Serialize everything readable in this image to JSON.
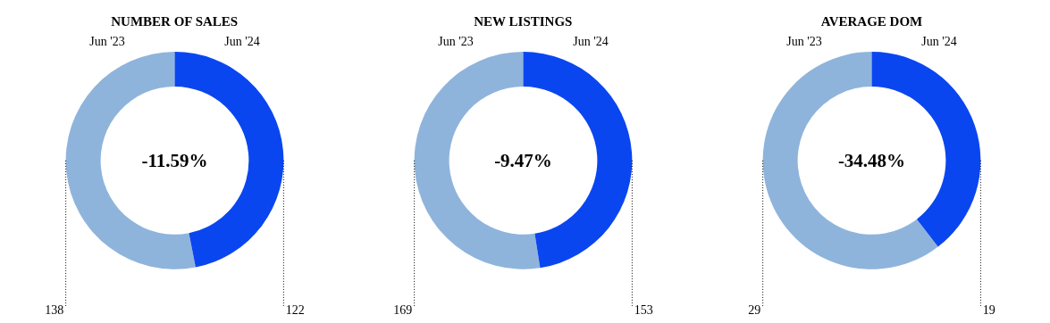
{
  "chart_data": [
    {
      "type": "donut",
      "title": "NUMBER OF SALES",
      "categories": [
        "Jun '23",
        "Jun '24"
      ],
      "values": [
        138,
        122
      ],
      "colors": [
        "#8fb4dc",
        "#0a46f0"
      ],
      "data_labels": true,
      "annotations": [
        "-11.59%"
      ]
    },
    {
      "type": "donut",
      "title": "NEW LISTINGS",
      "categories": [
        "Jun '23",
        "Jun '24"
      ],
      "values": [
        169,
        153
      ],
      "colors": [
        "#8fb4dc",
        "#0a46f0"
      ],
      "data_labels": true,
      "annotations": [
        "-9.47%"
      ]
    },
    {
      "type": "donut",
      "title": "AVERAGE DOM",
      "categories": [
        "Jun '23",
        "Jun '24"
      ],
      "values": [
        29,
        19
      ],
      "colors": [
        "#8fb4dc",
        "#0a46f0"
      ],
      "data_labels": true,
      "annotations": [
        "-34.48%"
      ]
    }
  ]
}
